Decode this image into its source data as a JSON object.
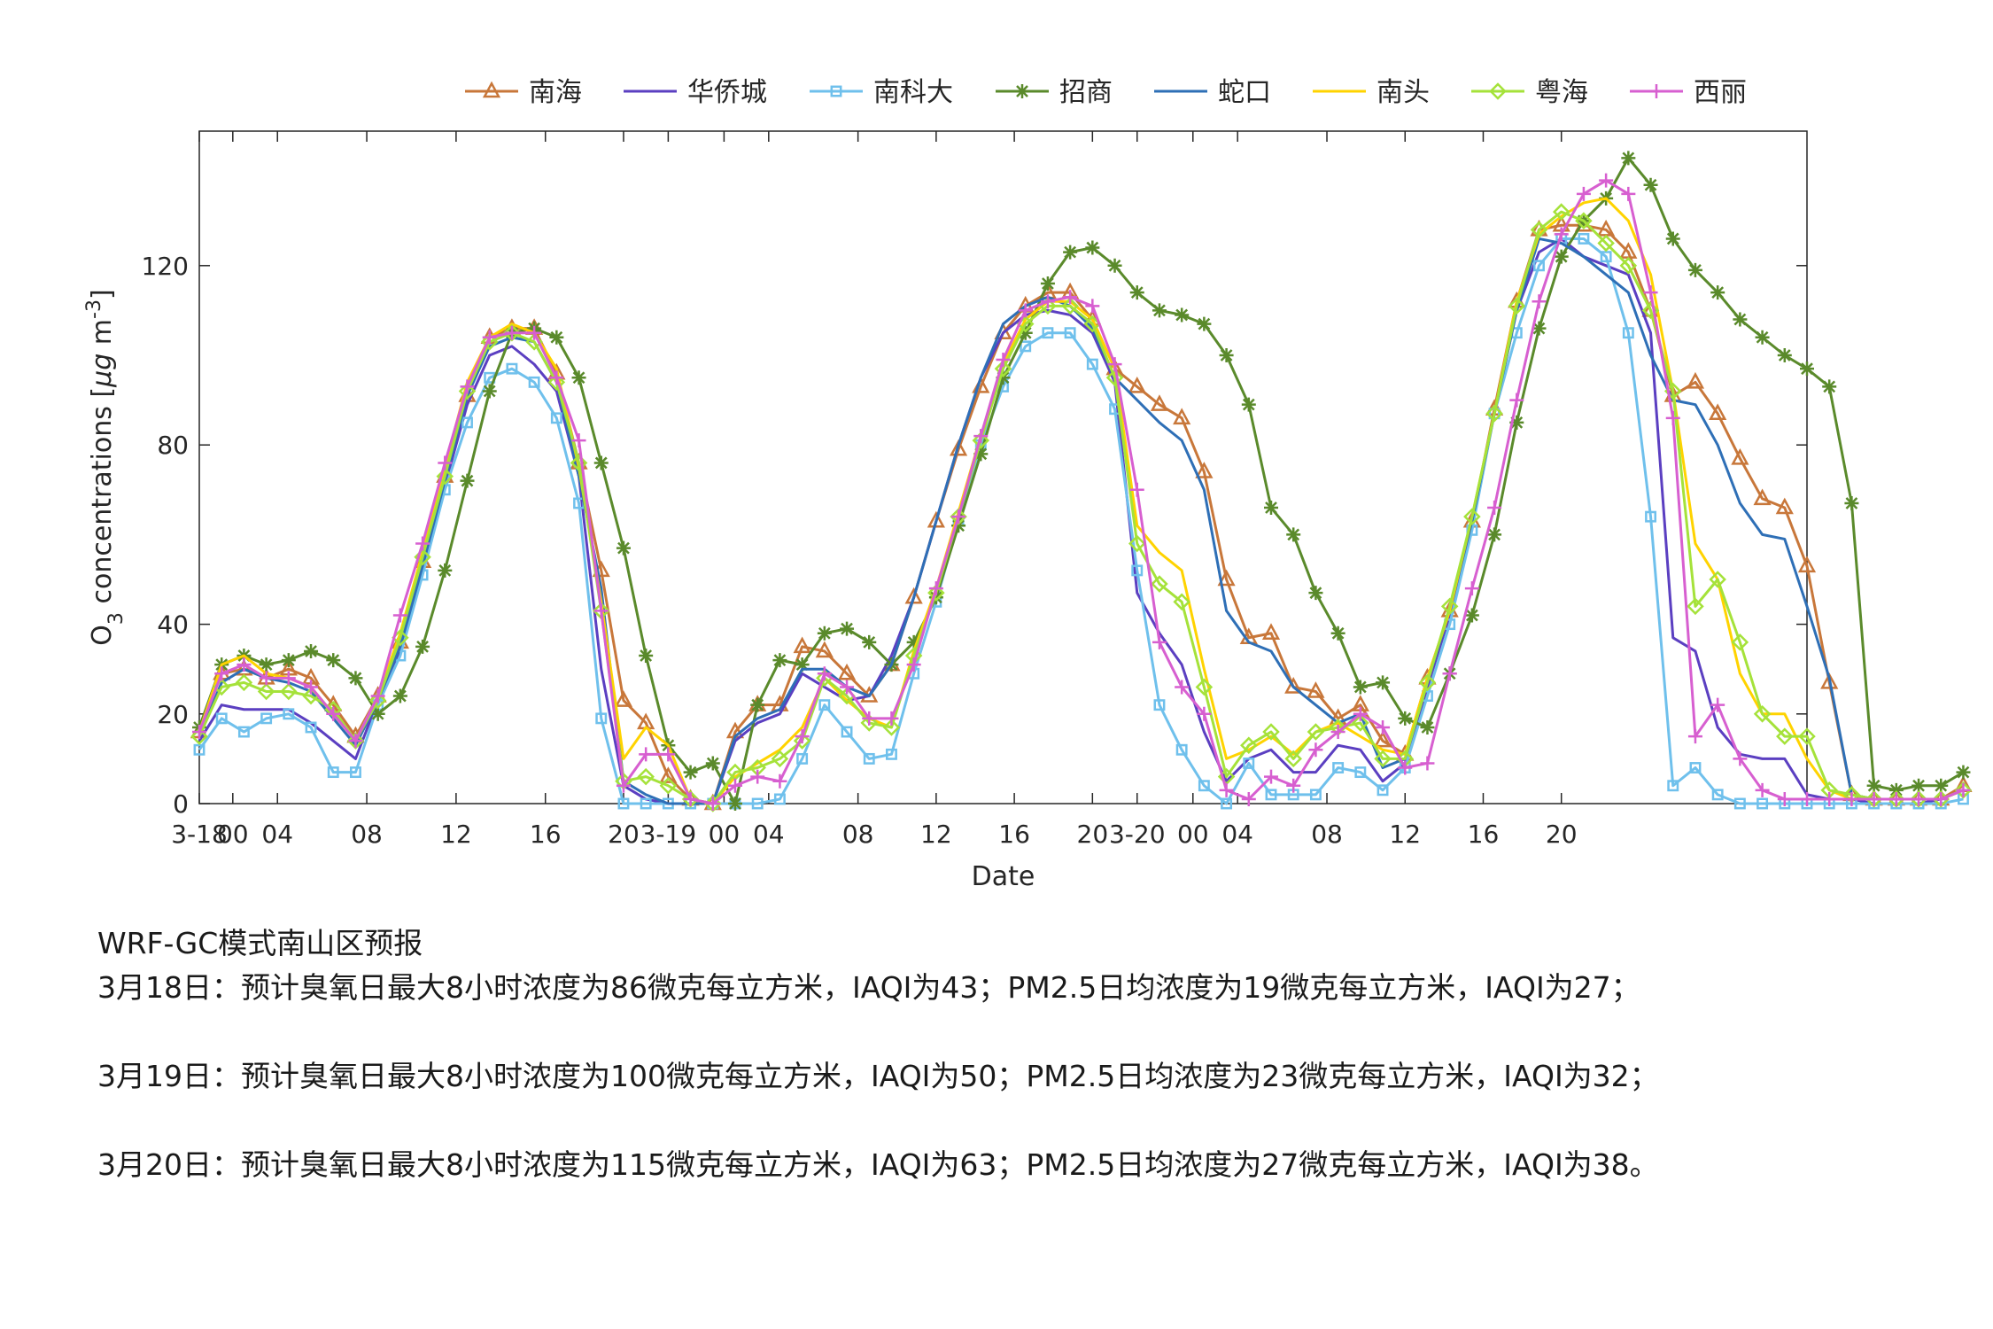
{
  "chart_data": {
    "type": "line",
    "xlabel": "Date",
    "ylabel": "O3 concentrations [μg m-3]",
    "ylabel_parts": {
      "base": "O",
      "sub": "3",
      "mid": " concentrations [",
      "mu": "μ",
      "g": "g",
      "unit": " m",
      "sup": "-3",
      "end": "]"
    },
    "ylim": [
      0,
      150
    ],
    "yticks": [
      0,
      20,
      40,
      80,
      120
    ],
    "xlim": [
      0,
      72
    ],
    "xticks": [
      {
        "x": 0,
        "label": "3-18"
      },
      {
        "x": 1.5,
        "label": "00"
      },
      {
        "x": 3.5,
        "label": "04"
      },
      {
        "x": 7.5,
        "label": "08"
      },
      {
        "x": 11.5,
        "label": "12"
      },
      {
        "x": 15.5,
        "label": "16"
      },
      {
        "x": 19,
        "label": "20"
      },
      {
        "x": 21,
        "label": "3-19"
      },
      {
        "x": 23.5,
        "label": "00"
      },
      {
        "x": 25.5,
        "label": "04"
      },
      {
        "x": 29.5,
        "label": "08"
      },
      {
        "x": 33,
        "label": "12"
      },
      {
        "x": 36.5,
        "label": "16"
      },
      {
        "x": 40,
        "label": "20"
      },
      {
        "x": 42,
        "label": "3-20"
      },
      {
        "x": 44.5,
        "label": "00"
      },
      {
        "x": 46.5,
        "label": "04"
      },
      {
        "x": 50.5,
        "label": "08"
      },
      {
        "x": 54,
        "label": "12"
      },
      {
        "x": 57.5,
        "label": "16"
      },
      {
        "x": 61,
        "label": "20"
      }
    ],
    "grid": false,
    "legend_position": "top",
    "series": [
      {
        "name": "南海",
        "color": "#C8773A",
        "marker": "triangle",
        "values": [
          16,
          29,
          30,
          28,
          30,
          28,
          22,
          15,
          24,
          36,
          54,
          73,
          91,
          104,
          106,
          106,
          96,
          76,
          52,
          23,
          18,
          6,
          1,
          0,
          16,
          22,
          22,
          35,
          34,
          29,
          24,
          31,
          46,
          63,
          79,
          93,
          105,
          111,
          114,
          114,
          108,
          97,
          93,
          89,
          86,
          74,
          50,
          37,
          38,
          26,
          25,
          19,
          22,
          14,
          11,
          28,
          43,
          63,
          88,
          112,
          128,
          129,
          129,
          128,
          123,
          110,
          91,
          94,
          87,
          77,
          68,
          66,
          53,
          27,
          2,
          1,
          1,
          1,
          1,
          4
        ]
      },
      {
        "name": "华侨城",
        "color": "#5B3FC1",
        "marker": "none",
        "values": [
          14,
          22,
          21,
          21,
          21,
          18,
          14,
          10,
          23,
          34,
          52,
          71,
          89,
          100,
          102,
          98,
          92,
          73,
          30,
          4,
          1,
          0,
          0,
          0,
          14,
          18,
          20,
          29,
          26,
          23,
          24,
          33,
          46,
          63,
          80,
          95,
          105,
          109,
          110,
          109,
          105,
          94,
          47,
          38,
          31,
          16,
          5,
          10,
          12,
          7,
          7,
          13,
          12,
          5,
          9,
          26,
          42,
          62,
          87,
          110,
          123,
          126,
          122,
          120,
          118,
          105,
          37,
          34,
          17,
          11,
          10,
          10,
          2,
          1,
          1,
          0,
          0,
          0,
          1,
          3
        ]
      },
      {
        "name": "南科大",
        "color": "#6FC0EC",
        "marker": "square",
        "values": [
          12,
          19,
          16,
          19,
          20,
          17,
          7,
          7,
          22,
          33,
          51,
          70,
          85,
          95,
          97,
          94,
          86,
          67,
          19,
          0,
          0,
          0,
          0,
          0,
          0,
          0,
          1,
          10,
          22,
          16,
          10,
          11,
          29,
          45,
          63,
          80,
          93,
          102,
          105,
          105,
          98,
          88,
          52,
          22,
          12,
          4,
          0,
          9,
          2,
          2,
          2,
          8,
          7,
          3,
          8,
          24,
          40,
          61,
          87,
          105,
          120,
          126,
          126,
          122,
          105,
          64,
          4,
          8,
          2,
          0,
          0,
          0,
          0,
          0,
          0,
          0,
          0,
          0,
          0,
          1
        ]
      },
      {
        "name": "招商",
        "color": "#5A8A2B",
        "marker": "star",
        "values": [
          17,
          31,
          33,
          31,
          32,
          34,
          32,
          28,
          20,
          24,
          35,
          52,
          72,
          92,
          105,
          106,
          104,
          95,
          76,
          57,
          33,
          13,
          7,
          9,
          0,
          22,
          32,
          31,
          38,
          39,
          36,
          31,
          36,
          46,
          62,
          78,
          95,
          105,
          116,
          123,
          124,
          120,
          114,
          110,
          109,
          107,
          100,
          89,
          66,
          60,
          47,
          38,
          26,
          27,
          19,
          17,
          29,
          42,
          60,
          85,
          106,
          122,
          130,
          135,
          144,
          138,
          126,
          119,
          114,
          108,
          104,
          100,
          97,
          93,
          67,
          4,
          3,
          4,
          4,
          7
        ]
      },
      {
        "name": "蛇口",
        "color": "#2E6FB6",
        "marker": "none",
        "values": [
          15,
          27,
          30,
          28,
          27,
          25,
          19,
          13,
          23,
          35,
          53,
          72,
          91,
          102,
          104,
          103,
          94,
          73,
          48,
          5,
          2,
          0,
          0,
          0,
          15,
          19,
          21,
          30,
          30,
          26,
          24,
          31,
          46,
          63,
          80,
          95,
          107,
          111,
          113,
          111,
          106,
          95,
          90,
          85,
          81,
          70,
          43,
          36,
          34,
          26,
          22,
          18,
          20,
          8,
          10,
          27,
          43,
          63,
          87,
          110,
          126,
          125,
          122,
          118,
          114,
          100,
          90,
          89,
          80,
          67,
          60,
          59,
          44,
          28,
          2,
          1,
          1,
          1,
          1,
          3
        ]
      },
      {
        "name": "南头",
        "color": "#FFD300",
        "marker": "none",
        "values": [
          16,
          31,
          33,
          29,
          28,
          26,
          20,
          14,
          24,
          38,
          56,
          75,
          94,
          104,
          107,
          105,
          97,
          75,
          45,
          10,
          17,
          13,
          1,
          0,
          6,
          9,
          12,
          17,
          28,
          23,
          19,
          17,
          34,
          48,
          65,
          82,
          98,
          108,
          112,
          112,
          108,
          97,
          62,
          56,
          52,
          30,
          10,
          12,
          15,
          11,
          16,
          18,
          15,
          12,
          11,
          28,
          43,
          64,
          87,
          112,
          127,
          131,
          134,
          135,
          130,
          118,
          92,
          58,
          50,
          29,
          20,
          20,
          10,
          3,
          1,
          1,
          1,
          1,
          1,
          3
        ]
      },
      {
        "name": "粤海",
        "color": "#A5E23A",
        "marker": "diamond",
        "values": [
          15,
          26,
          27,
          25,
          25,
          24,
          21,
          14,
          23,
          37,
          55,
          73,
          92,
          103,
          105,
          103,
          94,
          76,
          43,
          5,
          6,
          4,
          1,
          0,
          7,
          8,
          10,
          14,
          28,
          24,
          18,
          17,
          33,
          47,
          64,
          81,
          97,
          107,
          111,
          111,
          107,
          95,
          58,
          49,
          45,
          26,
          6,
          13,
          16,
          10,
          16,
          17,
          18,
          10,
          10,
          27,
          44,
          64,
          87,
          111,
          128,
          132,
          130,
          125,
          120,
          110,
          92,
          44,
          50,
          36,
          20,
          15,
          15,
          3,
          2,
          1,
          1,
          1,
          1,
          3
        ]
      },
      {
        "name": "西丽",
        "color": "#D75FD0",
        "marker": "plus",
        "values": [
          16,
          29,
          31,
          28,
          28,
          26,
          20,
          14,
          24,
          42,
          58,
          76,
          93,
          104,
          105,
          105,
          95,
          81,
          43,
          4,
          11,
          11,
          1,
          0,
          4,
          6,
          5,
          15,
          29,
          26,
          19,
          19,
          31,
          48,
          64,
          82,
          99,
          110,
          112,
          113,
          111,
          98,
          70,
          36,
          26,
          20,
          3,
          1,
          6,
          4,
          12,
          16,
          20,
          17,
          8,
          9,
          29,
          48,
          66,
          90,
          112,
          127,
          136,
          139,
          136,
          114,
          86,
          15,
          22,
          10,
          3,
          1,
          1,
          1,
          1,
          1,
          1,
          1,
          1,
          3
        ]
      }
    ]
  },
  "notes": {
    "title": "WRF-GC模式南山区预报",
    "lines": [
      "3月18日：预计臭氧日最大8小时浓度为86微克每立方米，IAQI为43；PM2.5日均浓度为19微克每立方米，IAQI为27；",
      "3月19日：预计臭氧日最大8小时浓度为100微克每立方米，IAQI为50；PM2.5日均浓度为23微克每立方米，IAQI为32；",
      "3月20日：预计臭氧日最大8小时浓度为115微克每立方米，IAQI为63；PM2.5日均浓度为27微克每立方米，IAQI为38。"
    ]
  }
}
